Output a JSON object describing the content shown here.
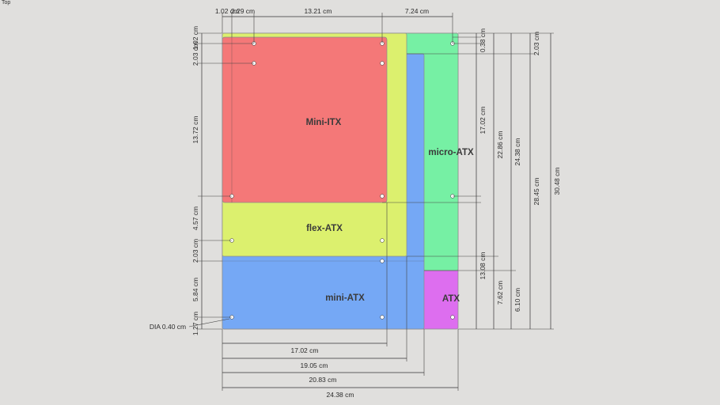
{
  "view": {
    "label": "Top"
  },
  "boards": {
    "atx": {
      "label": "ATX",
      "color": "#dd6eef"
    },
    "microatx": {
      "label": "micro-ATX",
      "color": "#76f0a4"
    },
    "miniatx": {
      "label": "mini-ATX",
      "color": "#75a8f5"
    },
    "flexatx": {
      "label": "flex-ATX",
      "color": "#dcf06e"
    },
    "miniitx": {
      "label": "Mini-ITX",
      "color": "#f47878"
    }
  },
  "dims": {
    "top_1": "1.02 cm",
    "top_2": "2.29 cm",
    "top_3": "13.21 cm",
    "top_4": "7.24 cm",
    "left_1": "1.02 cm",
    "left_2": "2.03 cm",
    "left_3": "13.72 cm",
    "left_4": "4.57 cm",
    "left_5": "2.03 cm",
    "left_6": "5.84 cm",
    "left_7": "1.27 cm",
    "dia": "DIA 0.40 cm",
    "right_a1": "0.38 cm",
    "right_a2": "17.02 cm",
    "right_a3": "13.08 cm",
    "right_b1": "22.86 cm",
    "right_b2": "7.62 cm",
    "right_c1": "24.38 cm",
    "right_c2": "6.10 cm",
    "right_d1": "2.03 cm",
    "right_d2": "28.45 cm",
    "right_e1": "30.48 cm",
    "bottom_1": "17.02 cm",
    "bottom_2": "19.05 cm",
    "bottom_3": "20.83 cm",
    "bottom_4": "24.38 cm"
  }
}
